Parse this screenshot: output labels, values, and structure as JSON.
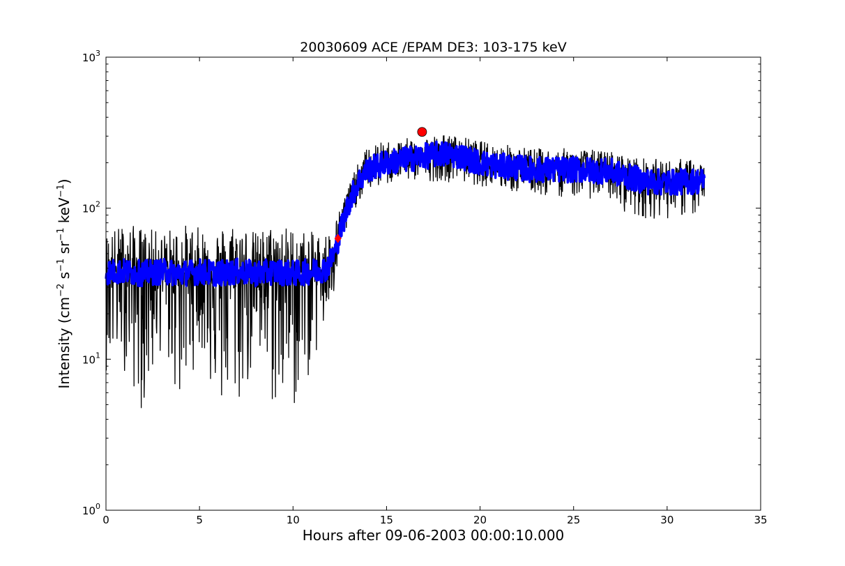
{
  "chart_data": {
    "type": "line",
    "title": "20030609 ACE /EPAM DE3: 103-175 keV",
    "xlabel": "Hours after 09-06-2003 00:00:10.000",
    "ylabel": {
      "prefix": "Intensity (cm",
      "exp1": "−2",
      "s": " s",
      "exp2": "−1",
      "sr": " sr",
      "exp3": "−1",
      "kev": " keV",
      "exp4": "−1",
      "suffix": ")"
    },
    "xlim": [
      0,
      35
    ],
    "ylim": [
      1,
      1000
    ],
    "yscale": "log",
    "grid": false,
    "x_ticks": [
      0,
      5,
      10,
      15,
      20,
      25,
      30,
      35
    ],
    "x_tick_labels": [
      "0",
      "5",
      "10",
      "15",
      "20",
      "25",
      "30",
      "35"
    ],
    "y_ticks": [
      1,
      10,
      100,
      1000
    ],
    "y_tick_labels": [
      {
        "base": "10",
        "exp": "0"
      },
      {
        "base": "10",
        "exp": "1"
      },
      {
        "base": "10",
        "exp": "2"
      },
      {
        "base": "10",
        "exp": "3"
      }
    ],
    "series": [
      {
        "role": "raw",
        "color": "#000000",
        "x": [
          0,
          1,
          2,
          3,
          4,
          5,
          6,
          7,
          8,
          9,
          10,
          11,
          11.8,
          12.2,
          12.6,
          13.0,
          13.5,
          14,
          15,
          16,
          17,
          18,
          19,
          20,
          21,
          22,
          23,
          24,
          25,
          26,
          27,
          28,
          29,
          30,
          31,
          32
        ],
        "y": [
          38,
          38,
          37,
          38,
          37,
          38,
          37,
          38,
          37,
          38,
          37,
          38,
          40,
          50,
          75,
          110,
          150,
          180,
          200,
          210,
          220,
          230,
          220,
          200,
          190,
          185,
          180,
          180,
          180,
          178,
          175,
          160,
          150,
          148,
          150,
          152
        ],
        "noise_min": [
          8.3,
          8.3,
          4.2,
          12,
          4.2,
          12,
          4.2,
          4.2,
          8.3,
          4.2,
          4.2,
          8.3,
          16,
          25,
          50,
          80,
          110,
          130,
          140,
          150,
          150,
          150,
          145,
          140,
          130,
          125,
          120,
          118,
          118,
          115,
          112,
          88,
          85,
          85,
          88,
          85
        ],
        "noise_max": [
          70,
          80,
          75,
          70,
          80,
          75,
          75,
          85,
          70,
          80,
          75,
          70,
          70,
          80,
          110,
          150,
          200,
          260,
          280,
          290,
          300,
          310,
          300,
          280,
          270,
          260,
          250,
          250,
          250,
          245,
          240,
          220,
          215,
          210,
          215,
          200
        ]
      },
      {
        "role": "smoothed",
        "color": "#0000ff",
        "x": [
          0,
          1,
          2,
          3,
          4,
          5,
          6,
          7,
          8,
          9,
          10,
          11,
          11.8,
          12.2,
          12.6,
          13.0,
          13.5,
          14,
          15,
          16,
          17,
          18,
          19,
          20,
          21,
          22,
          23,
          24,
          25,
          26,
          27,
          28,
          29,
          30,
          31,
          32
        ],
        "y": [
          38,
          38,
          37,
          38,
          37,
          38,
          37,
          38,
          37,
          38,
          37,
          38,
          40,
          50,
          75,
          110,
          150,
          180,
          200,
          210,
          220,
          230,
          220,
          200,
          190,
          185,
          180,
          180,
          180,
          178,
          175,
          160,
          150,
          148,
          150,
          152
        ]
      }
    ],
    "markers": [
      {
        "shape": "diamond",
        "color": "#ff0000",
        "x": 12.4,
        "y": 63
      },
      {
        "shape": "circle",
        "color": "#ff0000",
        "x": 16.9,
        "y": 320
      }
    ]
  }
}
